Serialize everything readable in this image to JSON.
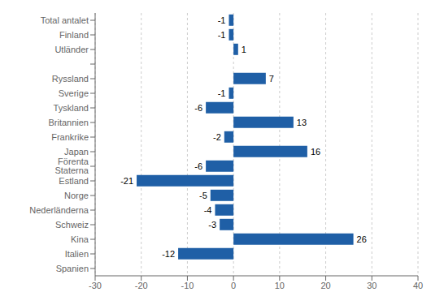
{
  "chart_data": {
    "type": "bar",
    "orientation": "horizontal",
    "categories": [
      "Total antalet",
      "Finland",
      "Utländer",
      null,
      "Ryssland",
      "Sverige",
      "Tyskland",
      "Britannien",
      "Frankrike",
      "Japan",
      "Förenta Staterna",
      "Estland",
      "Norge",
      "Nederländerna",
      "Schweiz",
      "Kina",
      "Italien",
      "Spanien"
    ],
    "values": [
      -1,
      -1,
      1,
      null,
      7,
      -1,
      -6,
      13,
      -2,
      16,
      -6,
      -21,
      -5,
      -4,
      -3,
      26,
      -12,
      0
    ],
    "color": "#1F5FA6",
    "xlim": [
      -30,
      40
    ],
    "xticks": [
      -30,
      -20,
      -10,
      0,
      10,
      20,
      30,
      40
    ],
    "grid": true,
    "data_labels": true
  }
}
